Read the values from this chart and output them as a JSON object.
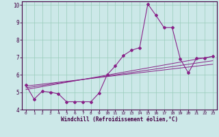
{
  "xlabel": "Windchill (Refroidissement éolien,°C)",
  "background_color": "#cce8e8",
  "grid_color": "#99ccbb",
  "line_color": "#882288",
  "axis_color": "#440044",
  "xlim": [
    -0.5,
    23.5
  ],
  "ylim": [
    4,
    10.2
  ],
  "yticks": [
    4,
    5,
    6,
    7,
    8,
    9,
    10
  ],
  "xticks": [
    0,
    1,
    2,
    3,
    4,
    5,
    6,
    7,
    8,
    9,
    10,
    11,
    12,
    13,
    14,
    15,
    16,
    17,
    18,
    19,
    20,
    21,
    22,
    23
  ],
  "main_x": [
    0,
    1,
    2,
    3,
    4,
    5,
    6,
    7,
    8,
    9,
    10,
    11,
    12,
    13,
    14,
    15,
    16,
    17,
    18,
    19,
    20,
    21,
    22,
    23
  ],
  "main_y": [
    5.4,
    4.6,
    5.05,
    5.0,
    4.9,
    4.45,
    4.45,
    4.45,
    4.45,
    4.95,
    6.0,
    6.5,
    7.1,
    7.4,
    7.55,
    10.05,
    9.4,
    8.7,
    8.7,
    6.9,
    6.1,
    6.95,
    6.95,
    7.05
  ],
  "trend1_x": [
    0,
    23
  ],
  "trend1_y": [
    5.15,
    7.05
  ],
  "trend2_x": [
    0,
    23
  ],
  "trend2_y": [
    5.25,
    6.8
  ],
  "trend3_x": [
    0,
    23
  ],
  "trend3_y": [
    5.35,
    6.6
  ]
}
